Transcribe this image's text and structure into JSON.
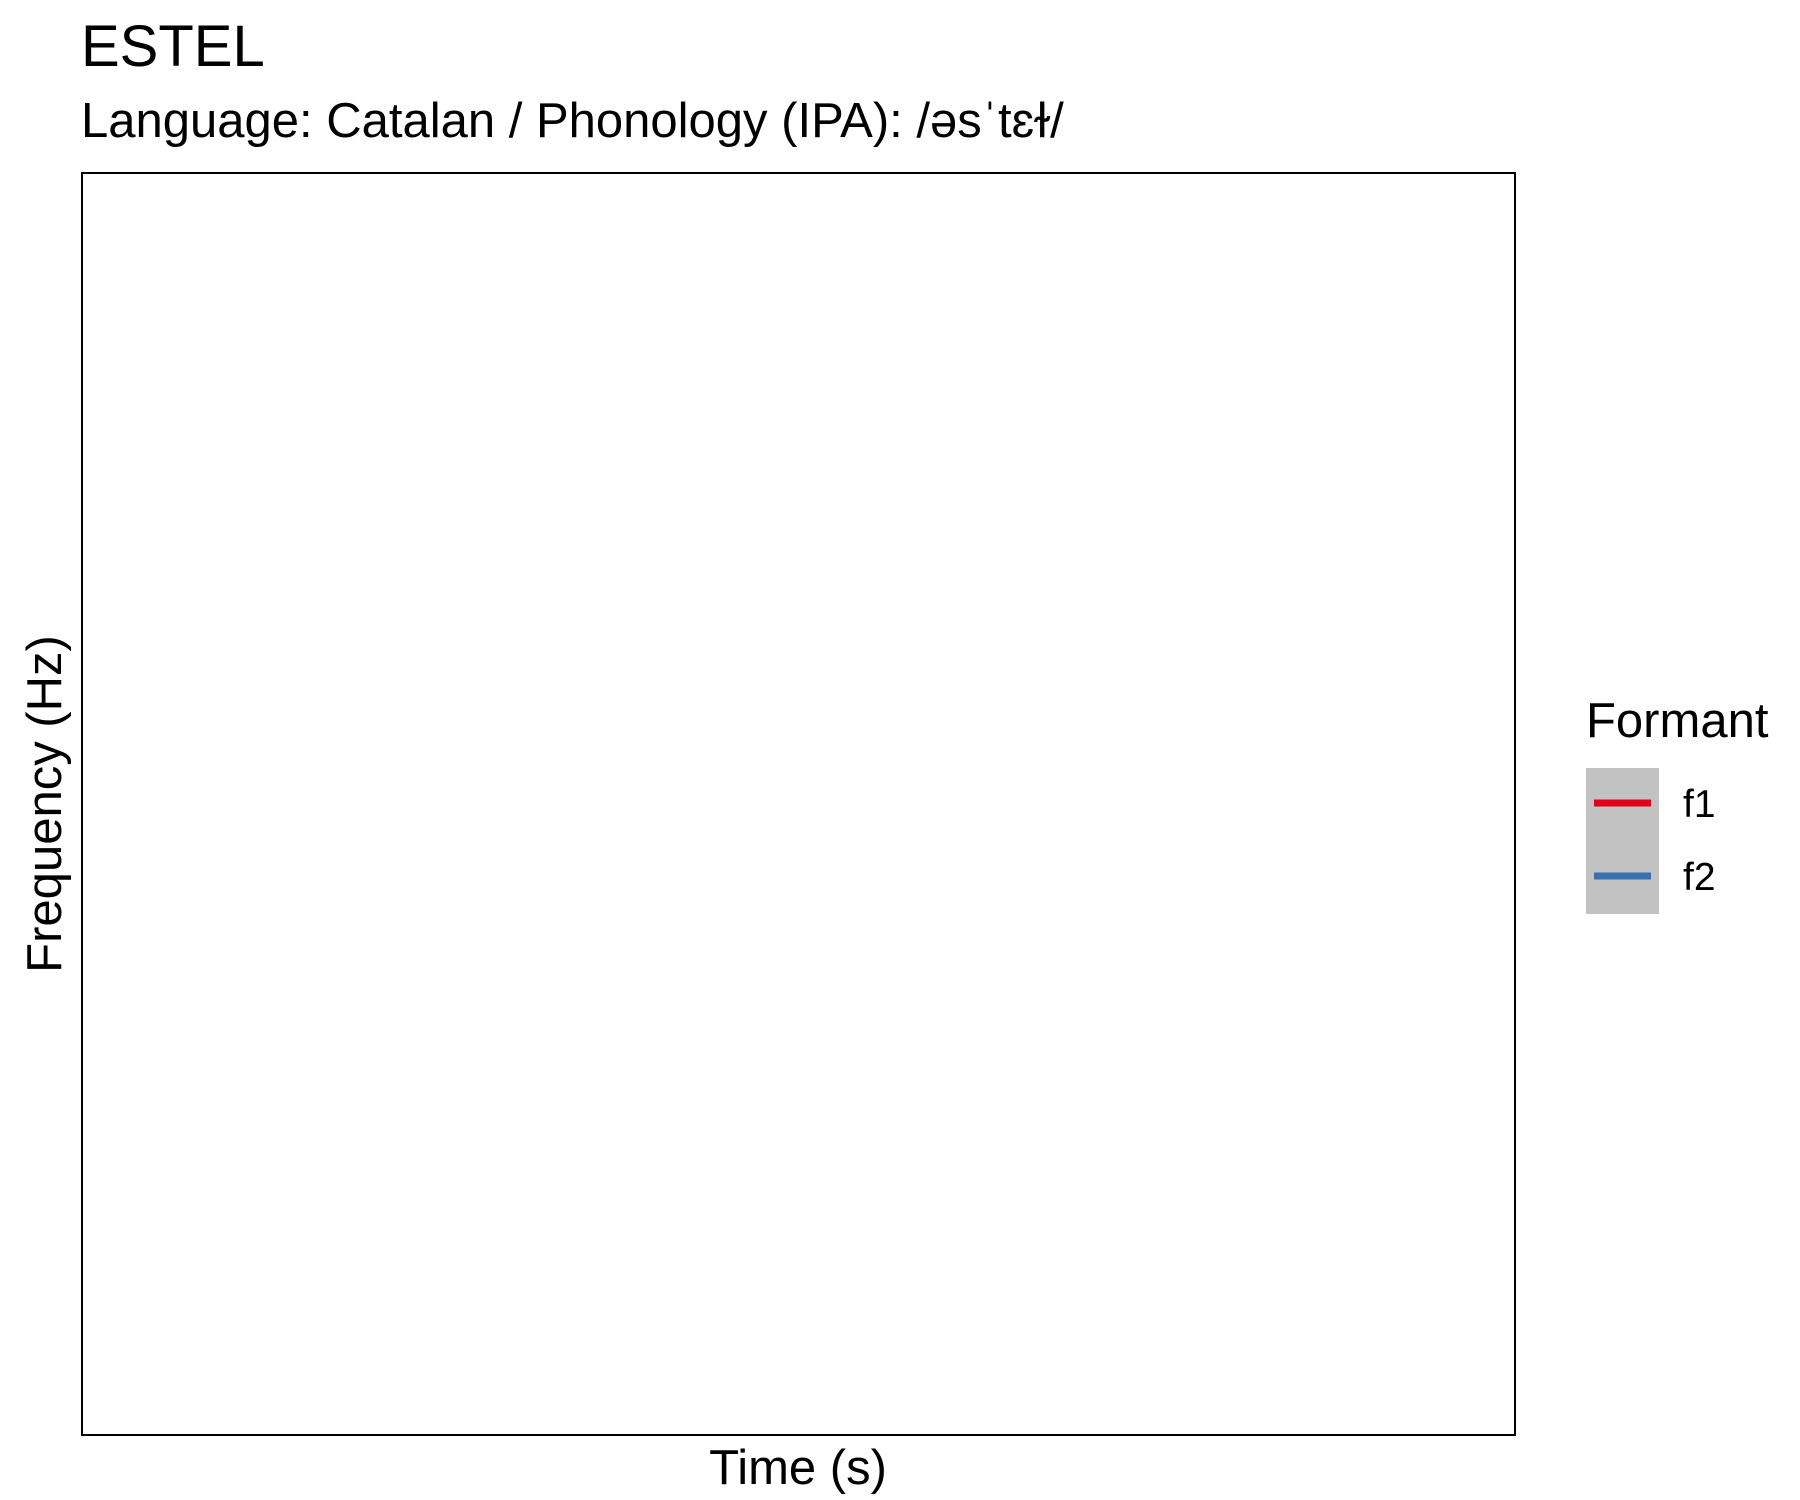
{
  "chart_data": {
    "type": "line",
    "title": "ESTEL",
    "subtitle": "Language: Catalan / Phonology (IPA): /əsˈtɛɫ/",
    "xlabel": "Time (s)",
    "ylabel": "Frequency (Hz)",
    "grid": false,
    "legend": {
      "title": "Formant",
      "placement": "right",
      "background_color": "#c2c2c2"
    },
    "series": [
      {
        "name": "f1",
        "color": "#e0001b",
        "x": [],
        "y": []
      },
      {
        "name": "f2",
        "color": "#3a6fb0",
        "x": [],
        "y": []
      }
    ]
  }
}
